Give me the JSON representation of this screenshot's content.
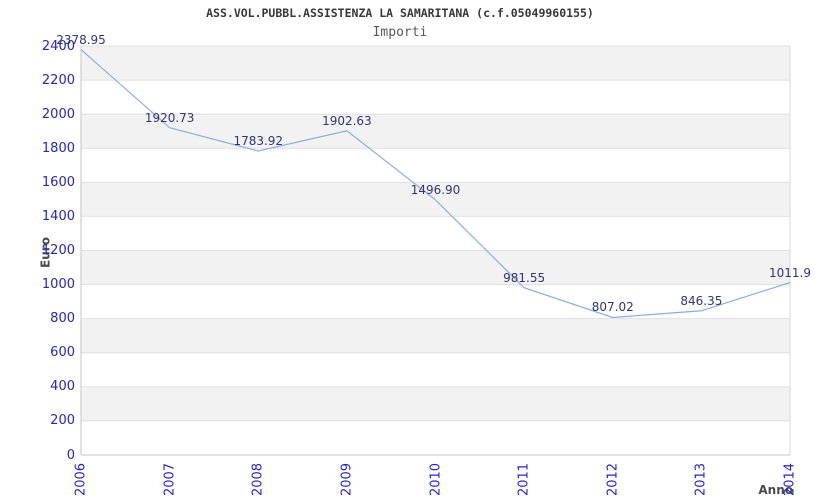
{
  "page": {
    "background": "#ffffff"
  },
  "chart_data": {
    "type": "line",
    "title": "ASS.VOL.PUBBL.ASSISTENZA LA SAMARITANA (c.f.05049960155)",
    "subtitle": "Importi",
    "xlabel": "Anno",
    "ylabel": "Euro",
    "categories": [
      "2006",
      "2007",
      "2008",
      "2009",
      "2010",
      "2011",
      "2012",
      "2013",
      "2014"
    ],
    "series": [
      {
        "name": "Importi",
        "values": [
          2378.95,
          1920.73,
          1783.92,
          1902.63,
          1496.9,
          981.55,
          807.02,
          846.35,
          1011.9
        ]
      }
    ],
    "point_labels": [
      "2378.95",
      "1920.73",
      "1783.92",
      "1902.63",
      "1496.90",
      "981.55",
      "807.02",
      "846.35",
      "1011.9"
    ],
    "ylim": [
      0,
      2400
    ],
    "ytick_step": 200,
    "yticks": [
      0,
      200,
      400,
      600,
      800,
      1000,
      1200,
      1400,
      1600,
      1800,
      2000,
      2200,
      2400
    ],
    "legend": "none",
    "grid": "horizontal-bands",
    "colors": {
      "line": "#89afe3",
      "axis_text": "#2424cc",
      "point_label": "#333377",
      "band": "#f2f2f2",
      "gridline": "#e0e0e0",
      "axis_line": "#c6c6c6",
      "right_border": "#d8d8d8",
      "title": "#383838",
      "subtitle": "#5a5a5a",
      "axis_title": "#4a4a4a"
    }
  }
}
